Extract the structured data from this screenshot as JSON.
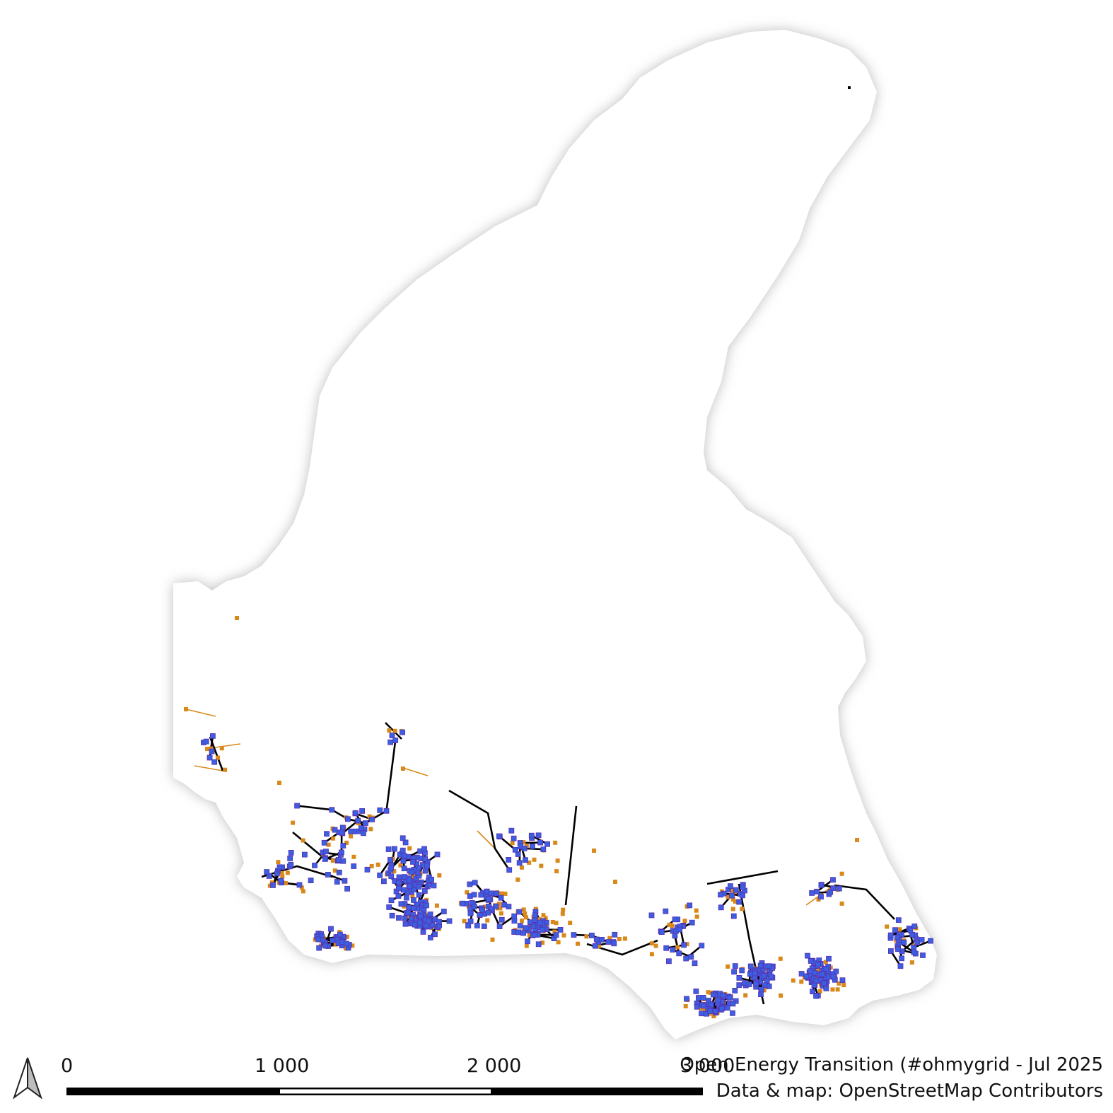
{
  "map": {
    "region_fill": "#ffffff",
    "halo_color": "#bdbdbd",
    "colors": {
      "substation": "#3b5fe0",
      "substation_outline": "#5a2fb0",
      "plant": "#d9891a",
      "line_high": "#000000",
      "line_low": "#d9891a"
    }
  },
  "scale_bar": {
    "labels": [
      "0",
      "1 000",
      "2 000",
      "3 000"
    ]
  },
  "credits": {
    "line1": "Open Energy Transition (#ohmygrid - Jul 2025",
    "line2": "Data & map: OpenStreetMap Contributors"
  },
  "north_arrow": {
    "icon": "north-arrow-icon"
  }
}
